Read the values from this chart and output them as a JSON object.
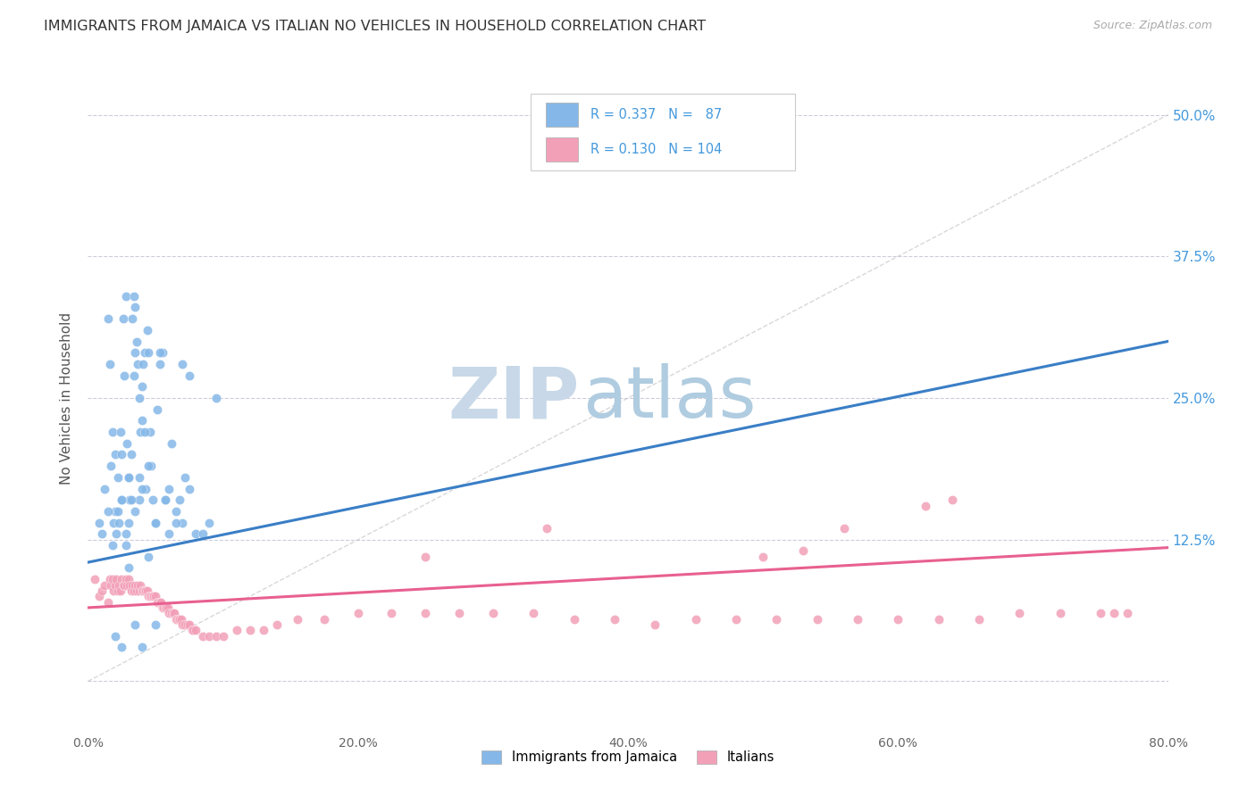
{
  "title": "IMMIGRANTS FROM JAMAICA VS ITALIAN NO VEHICLES IN HOUSEHOLD CORRELATION CHART",
  "source": "Source: ZipAtlas.com",
  "ylabel": "No Vehicles in Household",
  "ytick_labels": [
    "",
    "12.5%",
    "25.0%",
    "37.5%",
    "50.0%"
  ],
  "ytick_values": [
    0.0,
    0.125,
    0.25,
    0.375,
    0.5
  ],
  "xmin": 0.0,
  "xmax": 0.8,
  "ymin": -0.045,
  "ymax": 0.545,
  "blue_R": 0.337,
  "blue_N": 87,
  "pink_R": 0.13,
  "pink_N": 104,
  "blue_color": "#85B8E8",
  "pink_color": "#F2A0B8",
  "blue_line_color": "#3A7EC6",
  "pink_line_color": "#E86090",
  "diag_line_color": "#C8C8C8",
  "legend_label_blue": "Immigrants from Jamaica",
  "legend_label_pink": "Italians",
  "title_color": "#333333",
  "source_color": "#AAAAAA",
  "axis_label_color": "#4499DD",
  "watermark_zip_color": "#C8D8E8",
  "watermark_atlas_color": "#B0CCE0",
  "blue_scatter_x": [
    0.008,
    0.012,
    0.015,
    0.016,
    0.017,
    0.018,
    0.019,
    0.02,
    0.02,
    0.021,
    0.022,
    0.023,
    0.024,
    0.025,
    0.025,
    0.026,
    0.027,
    0.028,
    0.028,
    0.029,
    0.03,
    0.03,
    0.031,
    0.032,
    0.033,
    0.034,
    0.034,
    0.035,
    0.035,
    0.036,
    0.037,
    0.038,
    0.038,
    0.039,
    0.04,
    0.04,
    0.041,
    0.042,
    0.043,
    0.044,
    0.045,
    0.046,
    0.047,
    0.048,
    0.05,
    0.051,
    0.053,
    0.055,
    0.057,
    0.06,
    0.062,
    0.065,
    0.068,
    0.07,
    0.072,
    0.075,
    0.08,
    0.085,
    0.09,
    0.095,
    0.01,
    0.015,
    0.018,
    0.022,
    0.025,
    0.028,
    0.03,
    0.032,
    0.035,
    0.038,
    0.04,
    0.042,
    0.045,
    0.05,
    0.053,
    0.057,
    0.06,
    0.065,
    0.07,
    0.075,
    0.02,
    0.025,
    0.03,
    0.035,
    0.04,
    0.045,
    0.05
  ],
  "blue_scatter_y": [
    0.14,
    0.17,
    0.32,
    0.28,
    0.19,
    0.22,
    0.14,
    0.15,
    0.2,
    0.13,
    0.18,
    0.14,
    0.22,
    0.16,
    0.2,
    0.32,
    0.27,
    0.34,
    0.13,
    0.21,
    0.18,
    0.14,
    0.16,
    0.2,
    0.32,
    0.27,
    0.34,
    0.29,
    0.33,
    0.3,
    0.28,
    0.25,
    0.16,
    0.22,
    0.23,
    0.26,
    0.28,
    0.29,
    0.17,
    0.31,
    0.29,
    0.22,
    0.19,
    0.16,
    0.14,
    0.24,
    0.28,
    0.29,
    0.16,
    0.13,
    0.21,
    0.15,
    0.16,
    0.14,
    0.18,
    0.27,
    0.13,
    0.13,
    0.14,
    0.25,
    0.13,
    0.15,
    0.12,
    0.15,
    0.16,
    0.12,
    0.18,
    0.16,
    0.15,
    0.18,
    0.17,
    0.22,
    0.19,
    0.14,
    0.29,
    0.16,
    0.17,
    0.14,
    0.28,
    0.17,
    0.04,
    0.03,
    0.1,
    0.05,
    0.03,
    0.11,
    0.05
  ],
  "pink_scatter_x": [
    0.005,
    0.008,
    0.01,
    0.012,
    0.015,
    0.016,
    0.017,
    0.018,
    0.019,
    0.02,
    0.021,
    0.022,
    0.023,
    0.024,
    0.025,
    0.026,
    0.027,
    0.028,
    0.029,
    0.03,
    0.031,
    0.032,
    0.033,
    0.034,
    0.035,
    0.036,
    0.037,
    0.038,
    0.039,
    0.04,
    0.041,
    0.042,
    0.043,
    0.044,
    0.045,
    0.046,
    0.047,
    0.048,
    0.049,
    0.05,
    0.051,
    0.052,
    0.053,
    0.054,
    0.055,
    0.056,
    0.057,
    0.058,
    0.059,
    0.06,
    0.062,
    0.063,
    0.064,
    0.065,
    0.066,
    0.067,
    0.068,
    0.069,
    0.07,
    0.072,
    0.074,
    0.075,
    0.077,
    0.078,
    0.08,
    0.085,
    0.09,
    0.095,
    0.1,
    0.11,
    0.12,
    0.13,
    0.14,
    0.155,
    0.175,
    0.2,
    0.225,
    0.25,
    0.275,
    0.3,
    0.33,
    0.36,
    0.39,
    0.42,
    0.45,
    0.48,
    0.51,
    0.54,
    0.57,
    0.6,
    0.63,
    0.66,
    0.69,
    0.72,
    0.75,
    0.76,
    0.77,
    0.62,
    0.64,
    0.56,
    0.34,
    0.25,
    0.5,
    0.53
  ],
  "pink_scatter_y": [
    0.09,
    0.075,
    0.08,
    0.085,
    0.07,
    0.09,
    0.085,
    0.09,
    0.08,
    0.085,
    0.09,
    0.08,
    0.085,
    0.08,
    0.09,
    0.085,
    0.085,
    0.09,
    0.085,
    0.09,
    0.085,
    0.08,
    0.085,
    0.08,
    0.085,
    0.08,
    0.085,
    0.08,
    0.085,
    0.08,
    0.08,
    0.08,
    0.08,
    0.08,
    0.075,
    0.075,
    0.075,
    0.075,
    0.075,
    0.075,
    0.07,
    0.07,
    0.07,
    0.07,
    0.065,
    0.065,
    0.065,
    0.065,
    0.065,
    0.06,
    0.06,
    0.06,
    0.06,
    0.055,
    0.055,
    0.055,
    0.055,
    0.055,
    0.05,
    0.05,
    0.05,
    0.05,
    0.045,
    0.045,
    0.045,
    0.04,
    0.04,
    0.04,
    0.04,
    0.045,
    0.045,
    0.045,
    0.05,
    0.055,
    0.055,
    0.06,
    0.06,
    0.06,
    0.06,
    0.06,
    0.06,
    0.055,
    0.055,
    0.05,
    0.055,
    0.055,
    0.055,
    0.055,
    0.055,
    0.055,
    0.055,
    0.055,
    0.06,
    0.06,
    0.06,
    0.06,
    0.06,
    0.155,
    0.16,
    0.135,
    0.135,
    0.11,
    0.11,
    0.115
  ],
  "blue_line_x": [
    0.0,
    0.8
  ],
  "blue_line_y_start": 0.105,
  "blue_line_y_end": 0.3,
  "pink_line_x": [
    0.0,
    0.8
  ],
  "pink_line_y_start": 0.065,
  "pink_line_y_end": 0.118
}
